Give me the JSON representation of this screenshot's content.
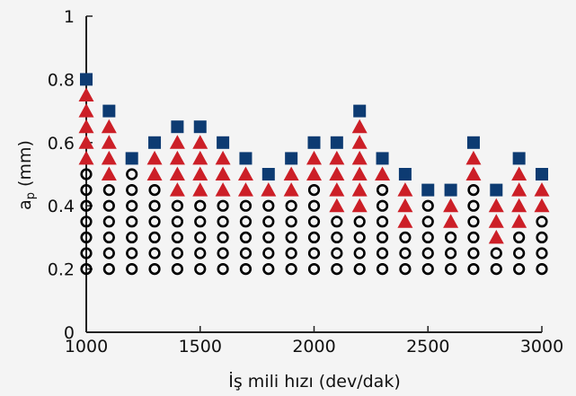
{
  "chart_data": {
    "type": "scatter",
    "xlabel": "İş mili hızı (dev/dak)",
    "ylabel": "ap (mm)",
    "ylabel_main": "a",
    "ylabel_sub": "p",
    "ylabel_rest": " (mm)",
    "xlim": [
      1000,
      3000
    ],
    "ylim": [
      0,
      1
    ],
    "xticks": [
      1000,
      1500,
      2000,
      2500,
      3000
    ],
    "xtick_labels": [
      "1000",
      "1500",
      "2000",
      "2500",
      "3000"
    ],
    "yticks": [
      0,
      0.2,
      0.4,
      0.6,
      0.8,
      1
    ],
    "ytick_labels": [
      "0",
      "0.2",
      "0.4",
      "0.6",
      "0.8",
      "1"
    ],
    "grid": false,
    "legend": "none",
    "colors": {
      "circle": "#000000",
      "triangle": "#cc1f27",
      "square": "#0d3b72",
      "background": "#f4f4f4"
    },
    "marker_shapes": {
      "circle": "circle-outline",
      "triangle": "triangle-up-filled",
      "square": "square-filled"
    },
    "columns": [
      {
        "x": 1000,
        "circle": [
          0.2,
          0.25,
          0.3,
          0.35,
          0.4,
          0.45,
          0.5
        ],
        "triangle": [
          0.55,
          0.6,
          0.65,
          0.7,
          0.75
        ],
        "square": [
          0.8
        ]
      },
      {
        "x": 1100,
        "circle": [
          0.2,
          0.25,
          0.3,
          0.35,
          0.4,
          0.45
        ],
        "triangle": [
          0.5,
          0.55,
          0.6,
          0.65
        ],
        "square": [
          0.7
        ]
      },
      {
        "x": 1200,
        "circle": [
          0.2,
          0.25,
          0.3,
          0.35,
          0.4,
          0.45,
          0.5
        ],
        "triangle": [],
        "square": [
          0.55
        ]
      },
      {
        "x": 1300,
        "circle": [
          0.2,
          0.25,
          0.3,
          0.35,
          0.4,
          0.45
        ],
        "triangle": [
          0.5,
          0.55
        ],
        "square": [
          0.6
        ]
      },
      {
        "x": 1400,
        "circle": [
          0.2,
          0.25,
          0.3,
          0.35,
          0.4
        ],
        "triangle": [
          0.45,
          0.5,
          0.55,
          0.6
        ],
        "square": [
          0.65
        ]
      },
      {
        "x": 1500,
        "circle": [
          0.2,
          0.25,
          0.3,
          0.35,
          0.4
        ],
        "triangle": [
          0.45,
          0.5,
          0.55,
          0.6
        ],
        "square": [
          0.65
        ]
      },
      {
        "x": 1600,
        "circle": [
          0.2,
          0.25,
          0.3,
          0.35,
          0.4
        ],
        "triangle": [
          0.45,
          0.5,
          0.55
        ],
        "square": [
          0.6
        ]
      },
      {
        "x": 1700,
        "circle": [
          0.2,
          0.25,
          0.3,
          0.35,
          0.4
        ],
        "triangle": [
          0.45,
          0.5
        ],
        "square": [
          0.55
        ]
      },
      {
        "x": 1800,
        "circle": [
          0.2,
          0.25,
          0.3,
          0.35,
          0.4
        ],
        "triangle": [
          0.45
        ],
        "square": [
          0.5
        ]
      },
      {
        "x": 1900,
        "circle": [
          0.2,
          0.25,
          0.3,
          0.35,
          0.4
        ],
        "triangle": [
          0.45,
          0.5
        ],
        "square": [
          0.55
        ]
      },
      {
        "x": 2000,
        "circle": [
          0.2,
          0.25,
          0.3,
          0.35,
          0.4,
          0.45
        ],
        "triangle": [
          0.5,
          0.55
        ],
        "square": [
          0.6
        ]
      },
      {
        "x": 2100,
        "circle": [
          0.2,
          0.25,
          0.3,
          0.35
        ],
        "triangle": [
          0.4,
          0.45,
          0.5,
          0.55
        ],
        "square": [
          0.6
        ]
      },
      {
        "x": 2200,
        "circle": [
          0.2,
          0.25,
          0.3,
          0.35
        ],
        "triangle": [
          0.4,
          0.45,
          0.5,
          0.55,
          0.6,
          0.65
        ],
        "square": [
          0.7
        ]
      },
      {
        "x": 2300,
        "circle": [
          0.2,
          0.25,
          0.3,
          0.35,
          0.4,
          0.45
        ],
        "triangle": [
          0.5
        ],
        "square": [
          0.55
        ]
      },
      {
        "x": 2400,
        "circle": [
          0.2,
          0.25,
          0.3
        ],
        "triangle": [
          0.35,
          0.4,
          0.45
        ],
        "square": [
          0.5
        ]
      },
      {
        "x": 2500,
        "circle": [
          0.2,
          0.25,
          0.3,
          0.35,
          0.4
        ],
        "triangle": [],
        "square": [
          0.45
        ]
      },
      {
        "x": 2600,
        "circle": [
          0.2,
          0.25,
          0.3
        ],
        "triangle": [
          0.35,
          0.4
        ],
        "square": [
          0.45
        ]
      },
      {
        "x": 2700,
        "circle": [
          0.2,
          0.25,
          0.3,
          0.35,
          0.4,
          0.45
        ],
        "triangle": [
          0.5,
          0.55
        ],
        "square": [
          0.6
        ]
      },
      {
        "x": 2800,
        "circle": [
          0.2,
          0.25
        ],
        "triangle": [
          0.3,
          0.35,
          0.4
        ],
        "square": [
          0.45
        ]
      },
      {
        "x": 2900,
        "circle": [
          0.2,
          0.25,
          0.3
        ],
        "triangle": [
          0.35,
          0.4,
          0.45,
          0.5
        ],
        "square": [
          0.55
        ]
      },
      {
        "x": 3000,
        "circle": [
          0.2,
          0.25,
          0.3,
          0.35
        ],
        "triangle": [
          0.4,
          0.45
        ],
        "square": [
          0.5
        ]
      }
    ]
  }
}
